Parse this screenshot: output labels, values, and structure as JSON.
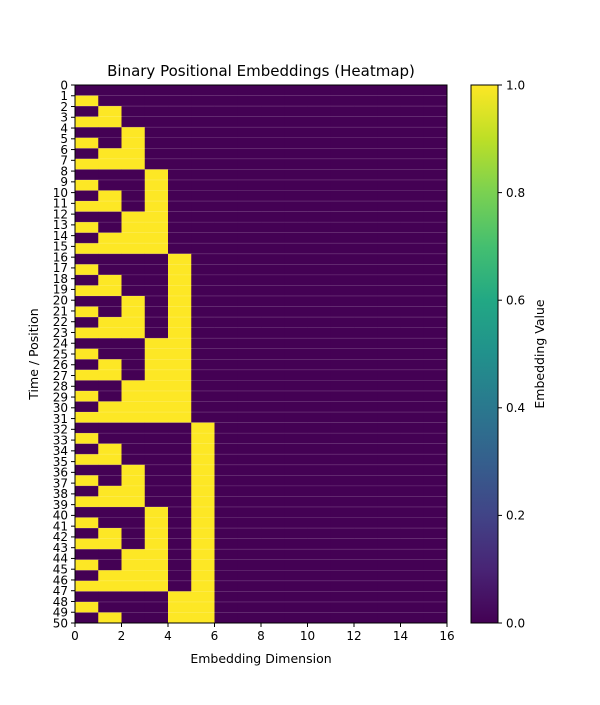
{
  "chart_data": [
    {
      "type": "heatmap",
      "title": "Binary Positional Embeddings (Heatmap)",
      "xlabel": "Embedding Dimension",
      "ylabel": "Time / Position",
      "xlim": [
        0,
        16
      ],
      "ylim": [
        0,
        50
      ],
      "x_ticks": [
        "0",
        "2",
        "4",
        "6",
        "8",
        "10",
        "12",
        "14",
        "16"
      ],
      "y_ticks": [
        "0",
        "1",
        "2",
        "3",
        "4",
        "5",
        "6",
        "7",
        "8",
        "9",
        "10",
        "11",
        "12",
        "13",
        "14",
        "15",
        "16",
        "17",
        "18",
        "19",
        "20",
        "21",
        "22",
        "23",
        "24",
        "25",
        "26",
        "27",
        "28",
        "29",
        "30",
        "31",
        "32",
        "33",
        "34",
        "35",
        "36",
        "37",
        "38",
        "39",
        "40",
        "41",
        "42",
        "43",
        "44",
        "45",
        "46",
        "47",
        "48",
        "49",
        "50"
      ],
      "rows": 51,
      "cols": 16,
      "values_rule": "value[position][dimension] = bit 'dimension' of integer 'position' (1 = set, 0 = unset)",
      "colorscale": "viridis",
      "color_low": "#440154",
      "color_high": "#fde725",
      "colorbar": {
        "label": "Embedding Value",
        "range": [
          0.0,
          1.0
        ],
        "ticks": [
          "0.0",
          "0.2",
          "0.4",
          "0.6",
          "0.8",
          "1.0"
        ]
      }
    }
  ]
}
